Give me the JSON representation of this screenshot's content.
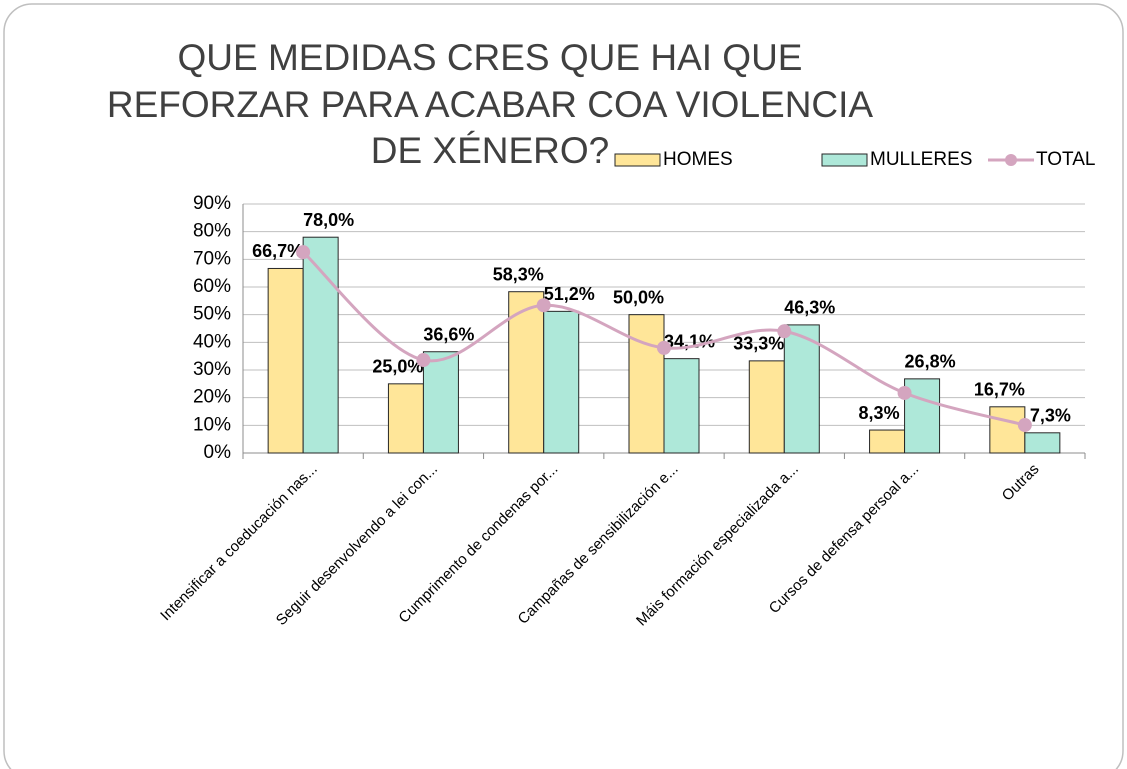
{
  "chart_data": {
    "type": "bar",
    "title": [
      "QUE MEDIDAS CRES QUE HAI QUE",
      "REFORZAR PARA ACABAR COA VIOLENCIA",
      "DE XÉNERO?"
    ],
    "categories": [
      "Intensificar a coeducación nas...",
      "Seguir desenvolvendo a lei con...",
      "Cumprimento de condenas por...",
      "Campañas de sensibilización e...",
      "Máis formación especializada a...",
      "Cursos de defensa persoal a...",
      "Outras"
    ],
    "series": [
      {
        "name": "HOMES",
        "type": "bar",
        "color": "#ffe699",
        "values": [
          66.7,
          25.0,
          58.3,
          50.0,
          33.3,
          8.3,
          16.7
        ],
        "value_labels": [
          "66,7%",
          "25,0%",
          "58,3%",
          "50,0%",
          "33,3%",
          "8,3%",
          "16,7%"
        ]
      },
      {
        "name": "MULLERES",
        "type": "bar",
        "color": "#aee8d9",
        "values": [
          78.0,
          36.6,
          51.2,
          34.1,
          46.3,
          26.8,
          7.3
        ],
        "value_labels": [
          "78,0%",
          "36,6%",
          "51,2%",
          "34,1%",
          "46,3%",
          "26,8%",
          "7,3%"
        ]
      },
      {
        "name": "TOTAL",
        "type": "line",
        "color": "#d4a5bf",
        "values": [
          72.6,
          33.6,
          53.4,
          38.0,
          44.0,
          21.7,
          10.1
        ]
      }
    ],
    "ylim": [
      0,
      90
    ],
    "yticks": [
      {
        "value": 0,
        "label": "0%"
      },
      {
        "value": 10,
        "label": "10%"
      },
      {
        "value": 20,
        "label": "20%"
      },
      {
        "value": 30,
        "label": "30%"
      },
      {
        "value": 40,
        "label": "40%"
      },
      {
        "value": 50,
        "label": "50%"
      },
      {
        "value": 60,
        "label": "60%"
      },
      {
        "value": 70,
        "label": "70%"
      },
      {
        "value": 80,
        "label": "80%"
      },
      {
        "value": 90,
        "label": "90%"
      }
    ],
    "grid": true,
    "legend": "top-right"
  }
}
